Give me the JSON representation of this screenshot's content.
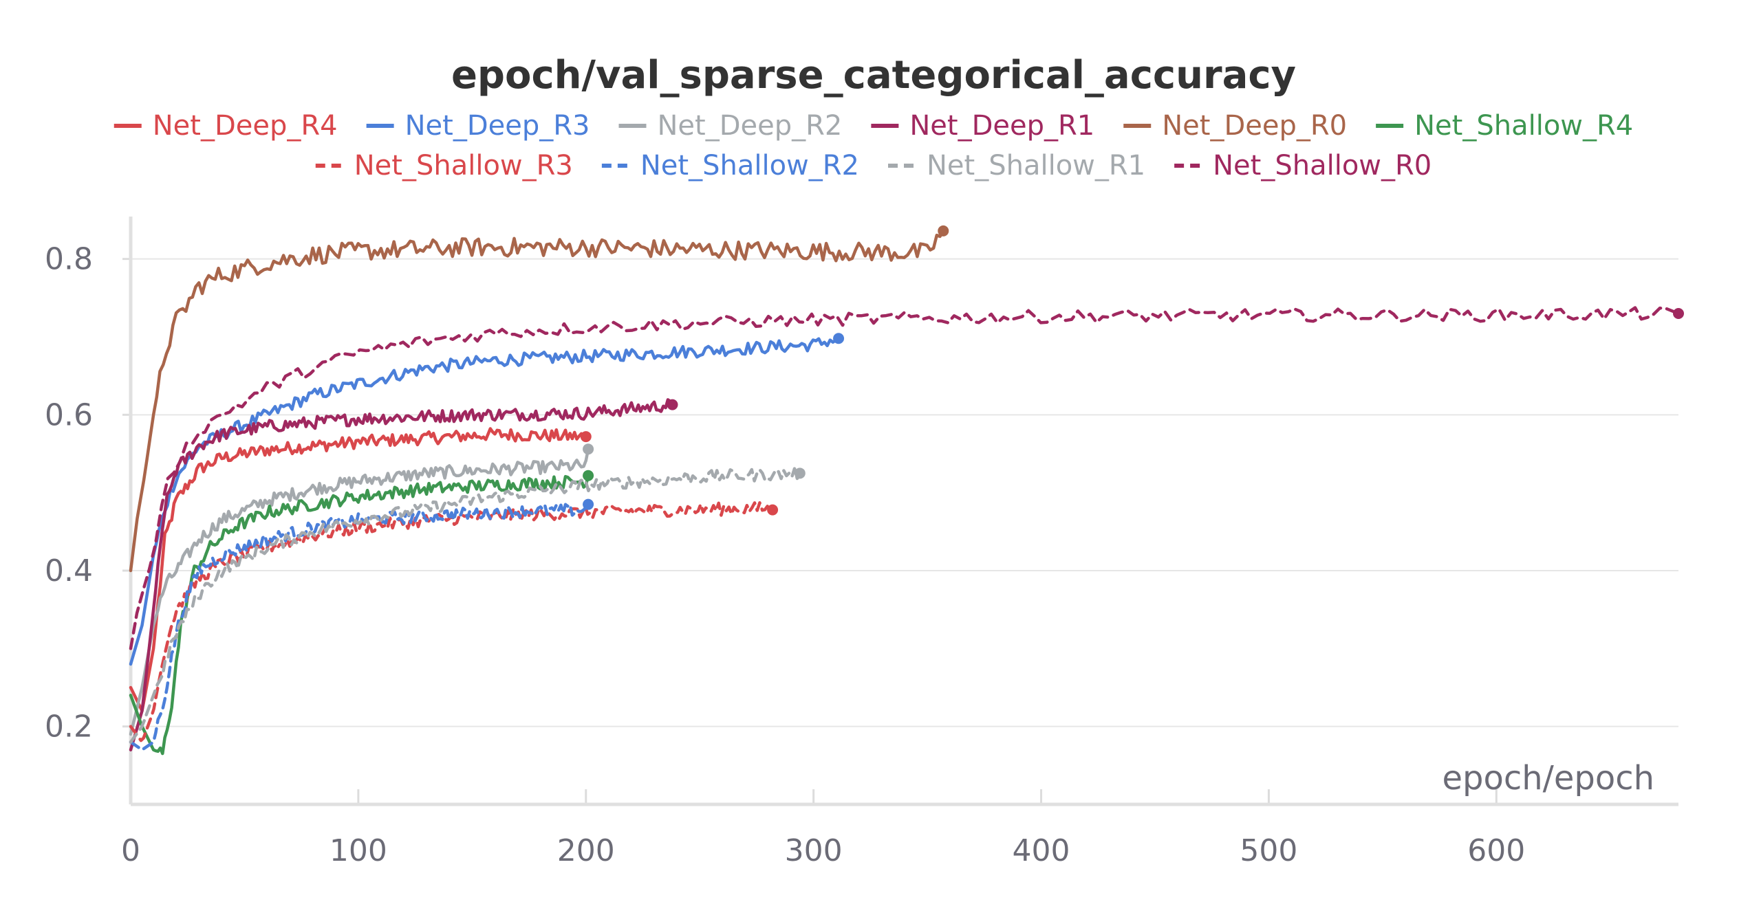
{
  "chart_data": {
    "type": "line",
    "title": "epoch/val_sparse_categorical_accuracy",
    "xlabel": "epoch/epoch",
    "ylabel": "",
    "xlim": [
      0,
      680
    ],
    "ylim": [
      0.1,
      0.85
    ],
    "x_ticks": [
      0,
      100,
      200,
      300,
      400,
      500,
      600
    ],
    "x_tick_labels": [
      "0",
      "100",
      "200",
      "300",
      "400",
      "500",
      "600"
    ],
    "y_ticks": [
      0.2,
      0.4,
      0.6,
      0.8
    ],
    "y_tick_labels": [
      "0.2",
      "0.4",
      "0.6",
      "0.8"
    ],
    "grid": true,
    "legend_position": "top",
    "series": [
      {
        "name": "Net_Deep_R4",
        "color": "#d9474b",
        "style": "solid",
        "end_marker": true,
        "points": [
          [
            0,
            0.25
          ],
          [
            5,
            0.22
          ],
          [
            10,
            0.3
          ],
          [
            15,
            0.44
          ],
          [
            20,
            0.49
          ],
          [
            30,
            0.53
          ],
          [
            40,
            0.545
          ],
          [
            60,
            0.555
          ],
          [
            80,
            0.56
          ],
          [
            100,
            0.565
          ],
          [
            130,
            0.57
          ],
          [
            160,
            0.575
          ],
          [
            200,
            0.572
          ]
        ]
      },
      {
        "name": "Net_Deep_R3",
        "color": "#4b7fd9",
        "style": "solid",
        "end_marker": true,
        "points": [
          [
            0,
            0.28
          ],
          [
            5,
            0.33
          ],
          [
            10,
            0.42
          ],
          [
            15,
            0.48
          ],
          [
            20,
            0.52
          ],
          [
            30,
            0.56
          ],
          [
            40,
            0.575
          ],
          [
            60,
            0.6
          ],
          [
            80,
            0.625
          ],
          [
            100,
            0.64
          ],
          [
            130,
            0.66
          ],
          [
            160,
            0.67
          ],
          [
            200,
            0.675
          ],
          [
            250,
            0.682
          ],
          [
            300,
            0.69
          ],
          [
            311,
            0.698
          ]
        ]
      },
      {
        "name": "Net_Deep_R2",
        "color": "#a4a9ad",
        "style": "solid",
        "end_marker": true,
        "points": [
          [
            0,
            0.19
          ],
          [
            5,
            0.25
          ],
          [
            10,
            0.33
          ],
          [
            15,
            0.38
          ],
          [
            20,
            0.4
          ],
          [
            30,
            0.44
          ],
          [
            40,
            0.465
          ],
          [
            60,
            0.49
          ],
          [
            80,
            0.505
          ],
          [
            100,
            0.515
          ],
          [
            130,
            0.525
          ],
          [
            160,
            0.53
          ],
          [
            200,
            0.535
          ],
          [
            201,
            0.556
          ]
        ]
      },
      {
        "name": "Net_Deep_R1",
        "color": "#a0285f",
        "style": "solid",
        "end_marker": true,
        "points": [
          [
            0,
            0.17
          ],
          [
            5,
            0.22
          ],
          [
            10,
            0.35
          ],
          [
            15,
            0.48
          ],
          [
            20,
            0.53
          ],
          [
            30,
            0.56
          ],
          [
            40,
            0.575
          ],
          [
            60,
            0.585
          ],
          [
            80,
            0.59
          ],
          [
            100,
            0.595
          ],
          [
            150,
            0.6
          ],
          [
            200,
            0.602
          ],
          [
            238,
            0.613
          ]
        ]
      },
      {
        "name": "Net_Deep_R0",
        "color": "#a9654a",
        "style": "solid",
        "end_marker": true,
        "points": [
          [
            0,
            0.4
          ],
          [
            3,
            0.47
          ],
          [
            6,
            0.52
          ],
          [
            10,
            0.6
          ],
          [
            15,
            0.68
          ],
          [
            20,
            0.72
          ],
          [
            30,
            0.765
          ],
          [
            40,
            0.78
          ],
          [
            60,
            0.795
          ],
          [
            80,
            0.805
          ],
          [
            100,
            0.81
          ],
          [
            150,
            0.815
          ],
          [
            200,
            0.815
          ],
          [
            250,
            0.812
          ],
          [
            300,
            0.81
          ],
          [
            350,
            0.808
          ],
          [
            357,
            0.836
          ]
        ]
      },
      {
        "name": "Net_Shallow_R4",
        "color": "#3d9650",
        "style": "solid",
        "end_marker": true,
        "points": [
          [
            0,
            0.24
          ],
          [
            5,
            0.2
          ],
          [
            10,
            0.17
          ],
          [
            14,
            0.165
          ],
          [
            18,
            0.23
          ],
          [
            22,
            0.33
          ],
          [
            28,
            0.4
          ],
          [
            35,
            0.43
          ],
          [
            45,
            0.455
          ],
          [
            60,
            0.475
          ],
          [
            80,
            0.485
          ],
          [
            100,
            0.495
          ],
          [
            130,
            0.505
          ],
          [
            160,
            0.51
          ],
          [
            200,
            0.515
          ],
          [
            201,
            0.522
          ]
        ]
      },
      {
        "name": "Net_Shallow_R3",
        "color": "#d9474b",
        "style": "dashed",
        "end_marker": true,
        "points": [
          [
            0,
            0.2
          ],
          [
            5,
            0.18
          ],
          [
            10,
            0.22
          ],
          [
            15,
            0.3
          ],
          [
            20,
            0.35
          ],
          [
            30,
            0.39
          ],
          [
            40,
            0.41
          ],
          [
            60,
            0.43
          ],
          [
            80,
            0.445
          ],
          [
            100,
            0.455
          ],
          [
            130,
            0.465
          ],
          [
            160,
            0.47
          ],
          [
            200,
            0.475
          ],
          [
            240,
            0.478
          ],
          [
            280,
            0.48
          ],
          [
            282,
            0.478
          ]
        ]
      },
      {
        "name": "Net_Shallow_R2",
        "color": "#4b7fd9",
        "style": "dashed",
        "end_marker": true,
        "points": [
          [
            0,
            0.18
          ],
          [
            5,
            0.17
          ],
          [
            10,
            0.18
          ],
          [
            15,
            0.24
          ],
          [
            20,
            0.32
          ],
          [
            25,
            0.37
          ],
          [
            30,
            0.4
          ],
          [
            40,
            0.42
          ],
          [
            60,
            0.44
          ],
          [
            80,
            0.455
          ],
          [
            100,
            0.465
          ],
          [
            130,
            0.47
          ],
          [
            160,
            0.475
          ],
          [
            200,
            0.478
          ],
          [
            201,
            0.485
          ]
        ]
      },
      {
        "name": "Net_Shallow_R1",
        "color": "#a4a9ad",
        "style": "dashed",
        "end_marker": true,
        "points": [
          [
            0,
            0.18
          ],
          [
            5,
            0.2
          ],
          [
            10,
            0.24
          ],
          [
            15,
            0.28
          ],
          [
            20,
            0.32
          ],
          [
            30,
            0.37
          ],
          [
            40,
            0.4
          ],
          [
            60,
            0.43
          ],
          [
            80,
            0.45
          ],
          [
            100,
            0.465
          ],
          [
            130,
            0.48
          ],
          [
            160,
            0.495
          ],
          [
            200,
            0.51
          ],
          [
            250,
            0.52
          ],
          [
            294,
            0.525
          ]
        ]
      },
      {
        "name": "Net_Shallow_R0",
        "color": "#a0285f",
        "style": "dashed",
        "end_marker": true,
        "points": [
          [
            0,
            0.3
          ],
          [
            3,
            0.35
          ],
          [
            6,
            0.38
          ],
          [
            10,
            0.42
          ],
          [
            15,
            0.5
          ],
          [
            20,
            0.54
          ],
          [
            30,
            0.58
          ],
          [
            40,
            0.6
          ],
          [
            60,
            0.635
          ],
          [
            80,
            0.66
          ],
          [
            100,
            0.68
          ],
          [
            130,
            0.695
          ],
          [
            160,
            0.705
          ],
          [
            200,
            0.712
          ],
          [
            250,
            0.718
          ],
          [
            300,
            0.722
          ],
          [
            400,
            0.726
          ],
          [
            500,
            0.728
          ],
          [
            600,
            0.728
          ],
          [
            680,
            0.73
          ]
        ]
      }
    ]
  }
}
